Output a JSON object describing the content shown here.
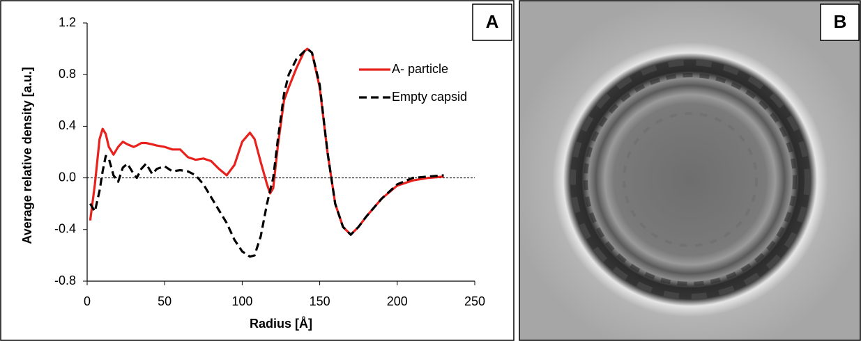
{
  "chart_data": {
    "type": "line",
    "panel_label": "A",
    "xlabel": "Radius [Å]",
    "ylabel": "Average relative density  [a.u.]",
    "x": [
      2,
      5,
      8,
      10,
      12,
      14,
      17,
      20,
      23,
      26,
      30,
      32,
      35,
      38,
      42,
      45,
      50,
      55,
      60,
      65,
      70,
      75,
      80,
      85,
      90,
      95,
      100,
      105,
      108,
      112,
      116,
      118,
      120,
      123,
      127,
      130,
      135,
      140,
      142,
      145,
      150,
      155,
      160,
      165,
      170,
      175,
      180,
      190,
      200,
      210,
      220,
      230
    ],
    "series": [
      {
        "name": "A- particle",
        "color": "#e8211c",
        "dash": false,
        "values": [
          -0.33,
          -0.05,
          0.3,
          0.38,
          0.34,
          0.24,
          0.18,
          0.24,
          0.28,
          0.26,
          0.24,
          0.25,
          0.27,
          0.27,
          0.26,
          0.25,
          0.24,
          0.22,
          0.22,
          0.16,
          0.14,
          0.15,
          0.13,
          0.07,
          0.02,
          0.1,
          0.28,
          0.35,
          0.3,
          0.12,
          -0.05,
          -0.12,
          -0.08,
          0.25,
          0.6,
          0.7,
          0.85,
          0.98,
          1.0,
          0.97,
          0.7,
          0.2,
          -0.2,
          -0.38,
          -0.44,
          -0.38,
          -0.3,
          -0.16,
          -0.06,
          -0.02,
          0.0,
          0.01
        ]
      },
      {
        "name": "Empty capsid",
        "color": "#000000",
        "dash": true,
        "values": [
          -0.2,
          -0.26,
          -0.1,
          0.05,
          0.17,
          0.15,
          0.02,
          -0.03,
          0.08,
          0.11,
          0.03,
          0.0,
          0.07,
          0.11,
          0.03,
          0.07,
          0.09,
          0.05,
          0.06,
          0.05,
          0.02,
          -0.05,
          -0.15,
          -0.25,
          -0.35,
          -0.48,
          -0.57,
          -0.61,
          -0.6,
          -0.45,
          -0.2,
          -0.1,
          0.0,
          0.3,
          0.65,
          0.8,
          0.92,
          0.98,
          1.0,
          0.97,
          0.72,
          0.2,
          -0.2,
          -0.38,
          -0.44,
          -0.38,
          -0.3,
          -0.16,
          -0.05,
          0.0,
          0.01,
          0.02
        ]
      }
    ],
    "xlim": [
      0,
      250
    ],
    "xticks": [
      0,
      50,
      100,
      150,
      200,
      250
    ],
    "ylim": [
      -0.8,
      1.2
    ],
    "yticks": [
      -0.8,
      -0.4,
      {
        "value": 0,
        "label": "0.0"
      },
      0.4,
      0.8,
      1.2
    ],
    "zero_line": true,
    "grid": false,
    "legend": "upper right"
  },
  "image_panel": {
    "label": "B"
  }
}
